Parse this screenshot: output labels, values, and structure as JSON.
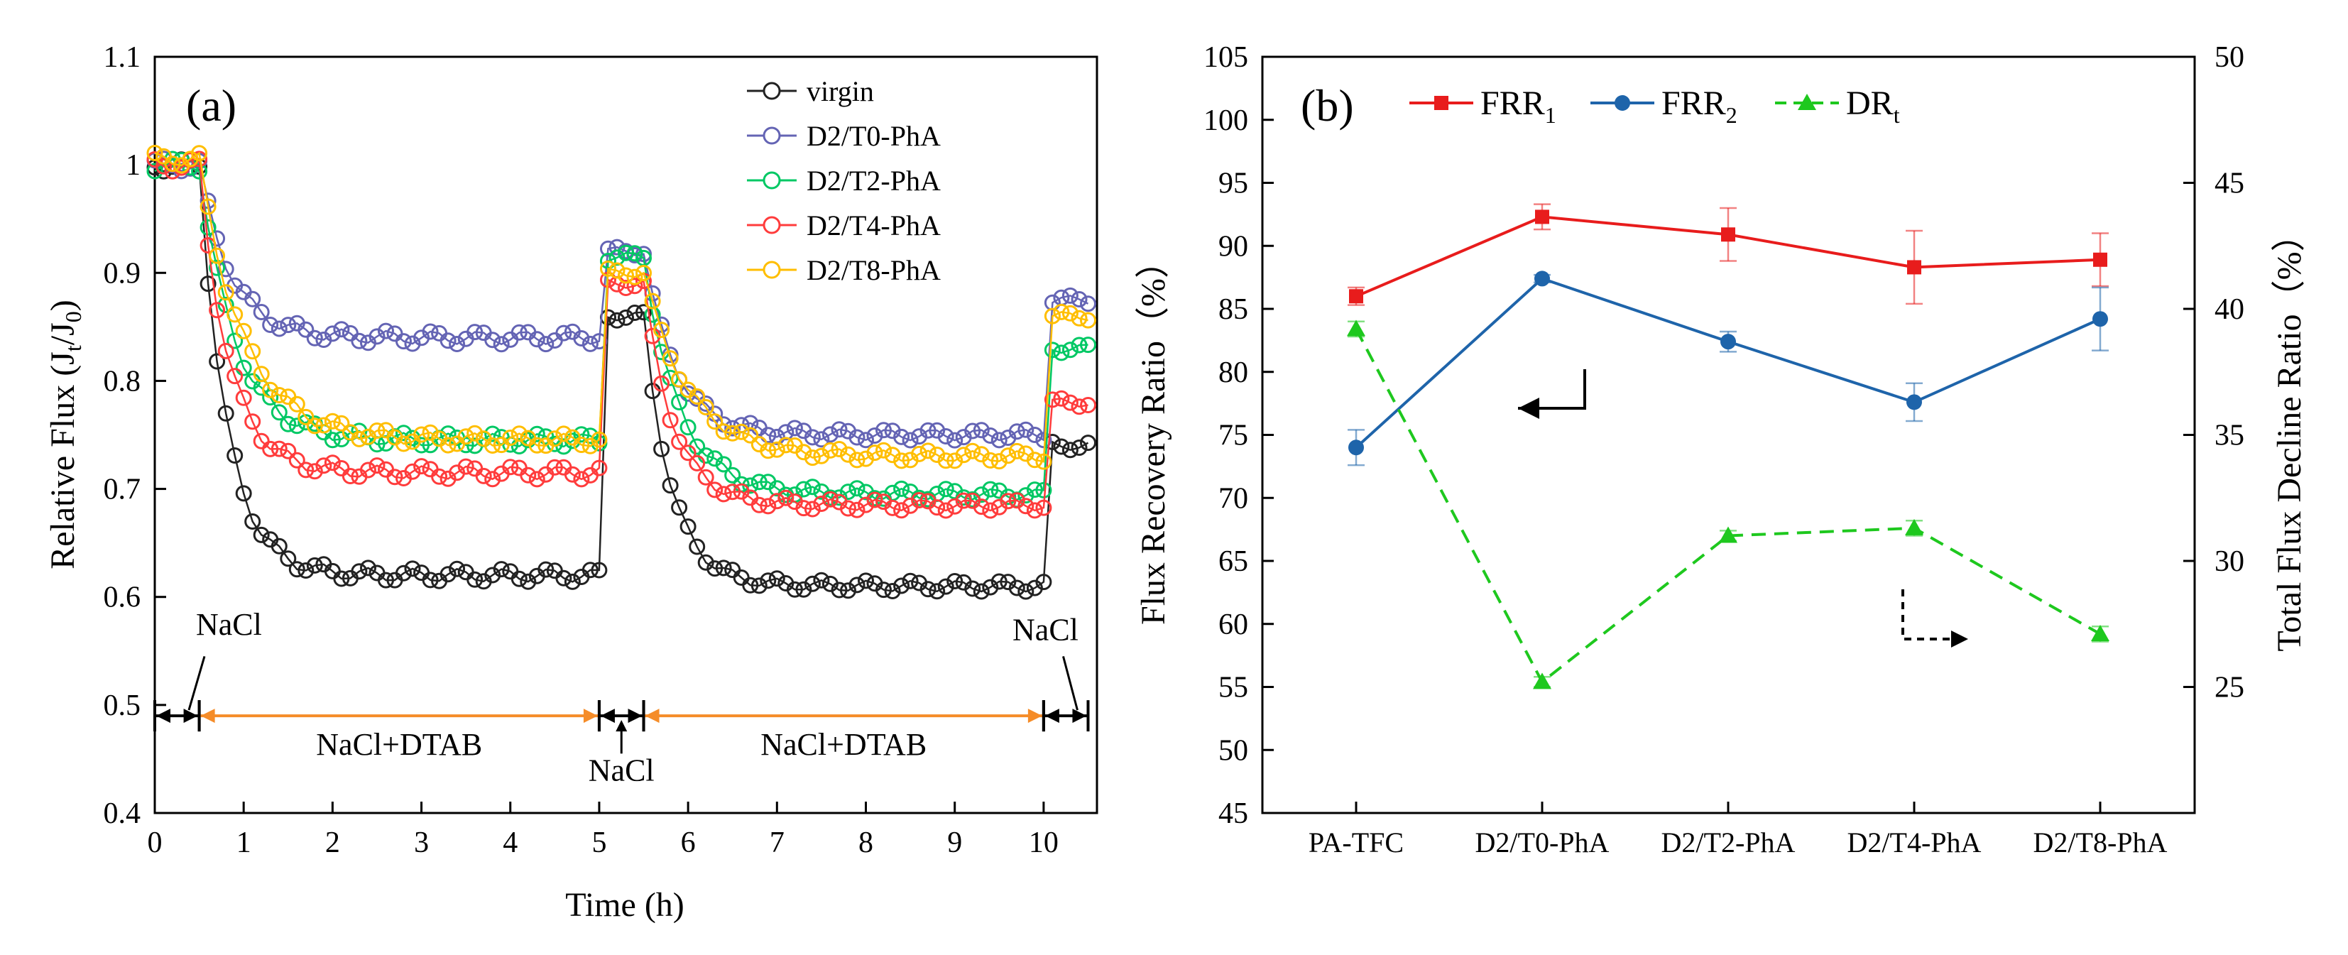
{
  "colors": {
    "virgin": "#222222",
    "t0": "#6464b4",
    "t2": "#00c864",
    "t4": "#ff3c3c",
    "t8": "#ffbe00",
    "frr1": "#e81c1c",
    "frr2": "#1e64aa",
    "dr": "#1ec81e",
    "phase": "#f58c28"
  },
  "chart_data": [
    {
      "id": "a",
      "type": "scatter",
      "panel_label": "(a)",
      "title": "",
      "xlabel": "Time (h)",
      "ylabel_main": "Relative Flux (J",
      "ylabel_sub1": "t",
      "ylabel_mid": "/J",
      "ylabel_sub2": "0",
      "ylabel_end": ")",
      "xlim": [
        0,
        10.6
      ],
      "ylim": [
        0.4,
        1.1
      ],
      "xticks": [
        0,
        1,
        2,
        3,
        4,
        5,
        6,
        7,
        8,
        9,
        10
      ],
      "yticks": [
        0.4,
        0.5,
        0.6,
        0.7,
        0.8,
        0.9,
        1.0,
        1.1
      ],
      "legend_position": "top-right",
      "series": [
        {
          "key": "virgin",
          "name": "virgin",
          "initial": 1.0,
          "d1": 0.62,
          "rec": 0.86,
          "d2": 0.61,
          "fin": 0.74,
          "k": 3.2
        },
        {
          "key": "t0",
          "name": "D2/T0-PhA",
          "initial": 1.0,
          "d1": 0.84,
          "rec": 0.92,
          "d2": 0.75,
          "fin": 0.875,
          "k": 2.8
        },
        {
          "key": "t2",
          "name": "D2/T2-PhA",
          "initial": 1.0,
          "d1": 0.745,
          "rec": 0.915,
          "d2": 0.695,
          "fin": 0.83,
          "k": 2.5
        },
        {
          "key": "t4",
          "name": "D2/T4-PhA",
          "initial": 1.0,
          "d1": 0.715,
          "rec": 0.89,
          "d2": 0.685,
          "fin": 0.78,
          "k": 3.0
        },
        {
          "key": "t8",
          "name": "D2/T8-PhA",
          "initial": 1.005,
          "d1": 0.745,
          "rec": 0.9,
          "d2": 0.73,
          "fin": 0.86,
          "k": 2.0
        }
      ],
      "phases": [
        {
          "label": "NaCl",
          "x_start": 0,
          "x_end": 0.5,
          "y": 0.49
        },
        {
          "label": "NaCl+DTAB",
          "x_start": 0.5,
          "x_end": 5.0,
          "y": 0.49
        },
        {
          "label": "NaCl",
          "x_start": 5.0,
          "x_end": 5.5,
          "y": 0.49
        },
        {
          "label": "NaCl+DTAB",
          "x_start": 5.5,
          "x_end": 10.0,
          "y": 0.49
        },
        {
          "label": "NaCl",
          "x_start": 10.0,
          "x_end": 10.5,
          "y": 0.49
        }
      ]
    },
    {
      "id": "b",
      "type": "line",
      "panel_label": "(b)",
      "title": "",
      "xlabel": "",
      "ylabel_left": "Flux Recovery Ratio（%）",
      "ylabel_right": "Total Flux Decline Ratio（%）",
      "categories": [
        "PA-TFC",
        "D2/T0-PhA",
        "D2/T2-PhA",
        "D2/T4-PhA",
        "D2/T8-PhA"
      ],
      "ylim_left": [
        45,
        105
      ],
      "ylim_right": [
        20,
        50
      ],
      "yticks_left": [
        45,
        50,
        55,
        60,
        65,
        70,
        75,
        80,
        85,
        90,
        95,
        100,
        105
      ],
      "yticks_right": [
        25,
        30,
        35,
        40,
        45,
        50
      ],
      "legend_position": "top",
      "series": [
        {
          "key": "frr1",
          "name_main": "FRR",
          "name_sub": "1",
          "axis": "left",
          "style": "solid",
          "marker": "square",
          "values": [
            86.0,
            92.3,
            90.9,
            88.3,
            88.9
          ],
          "errors": [
            0.7,
            1.0,
            2.1,
            2.9,
            2.1
          ]
        },
        {
          "key": "frr2",
          "name_main": "FRR",
          "name_sub": "2",
          "axis": "left",
          "style": "solid",
          "marker": "circle",
          "values": [
            74.0,
            87.4,
            82.4,
            77.6,
            84.2
          ],
          "errors": [
            1.4,
            0.3,
            0.8,
            1.5,
            2.5
          ]
        },
        {
          "key": "dr",
          "name_main": "DR",
          "name_sub": "t",
          "axis": "right",
          "style": "dashed",
          "marker": "triangle",
          "values": [
            39.2,
            25.2,
            31.0,
            31.3,
            27.1
          ],
          "errors": [
            0.3,
            0.2,
            0.2,
            0.3,
            0.3
          ]
        }
      ]
    }
  ]
}
